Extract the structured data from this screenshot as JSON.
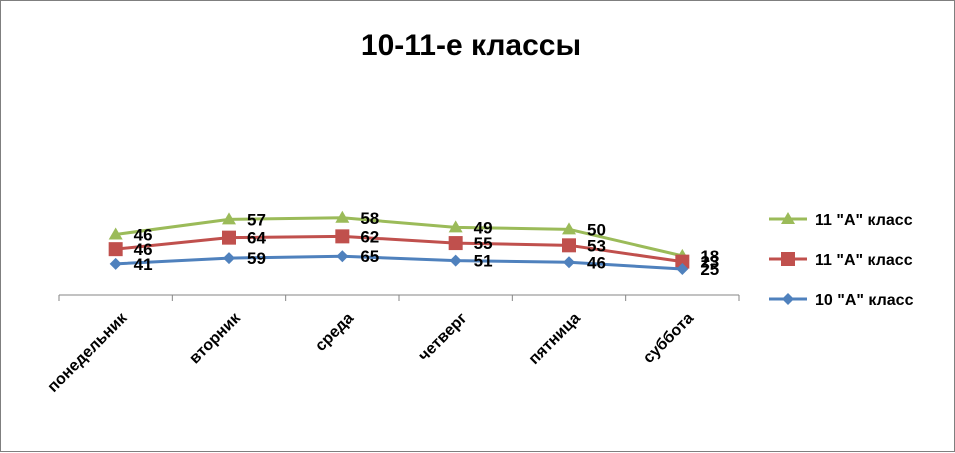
{
  "chart_data": {
    "type": "line",
    "title": "10-11-е классы",
    "categories": [
      "понедельник",
      "вторник",
      "среда",
      "четверг",
      "пятница",
      "суббота"
    ],
    "series": [
      {
        "name": "10 \"А\" класс",
        "values": [
          41,
          59,
          65,
          51,
          46,
          25
        ],
        "color": "#4F81BD",
        "marker": "diamond"
      },
      {
        "name": "11 \"А\" класс",
        "values": [
          46,
          64,
          62,
          55,
          53,
          23
        ],
        "color": "#C0504D",
        "marker": "square"
      },
      {
        "name": "11 \"А\" класс",
        "values": [
          46,
          57,
          58,
          49,
          50,
          18
        ],
        "color": "#9BBB59",
        "marker": "triangle"
      }
    ],
    "grid": false,
    "legend_position": "right",
    "stacked": true
  }
}
